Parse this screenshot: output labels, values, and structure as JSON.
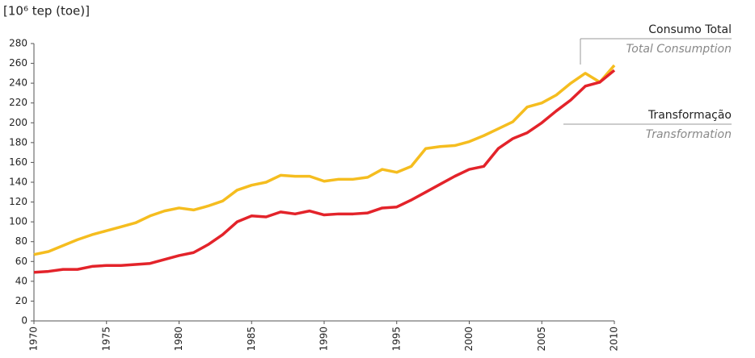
{
  "chart_data": {
    "type": "line",
    "y_label": "[10⁶ tep (toe)]",
    "x": [
      1970,
      1971,
      1972,
      1973,
      1974,
      1975,
      1976,
      1977,
      1978,
      1979,
      1980,
      1981,
      1982,
      1983,
      1984,
      1985,
      1986,
      1987,
      1988,
      1989,
      1990,
      1991,
      1992,
      1993,
      1994,
      1995,
      1996,
      1997,
      1998,
      1999,
      2000,
      2001,
      2002,
      2003,
      2004,
      2005,
      2006,
      2007,
      2008,
      2009,
      2010
    ],
    "series": [
      {
        "name": "Consumo Total",
        "name_translation": "Total Consumption",
        "color": "#f5bd1f",
        "values": [
          67,
          70,
          76,
          82,
          87,
          91,
          95,
          99,
          106,
          111,
          114,
          112,
          116,
          121,
          132,
          137,
          140,
          147,
          146,
          146,
          141,
          143,
          143,
          145,
          153,
          150,
          156,
          174,
          176,
          177,
          181,
          187,
          194,
          201,
          216,
          220,
          228,
          240,
          250,
          241,
          258
        ]
      },
      {
        "name": "Transformação",
        "name_translation": "Transformation",
        "color": "#e3232a",
        "values": [
          49,
          50,
          52,
          52,
          55,
          56,
          56,
          57,
          58,
          62,
          66,
          69,
          77,
          87,
          100,
          106,
          105,
          110,
          108,
          111,
          107,
          108,
          108,
          109,
          114,
          115,
          122,
          130,
          138,
          146,
          153,
          156,
          174,
          184,
          190,
          200,
          212,
          223,
          237,
          241,
          253
        ]
      }
    ],
    "xlim": [
      1970,
      2010
    ],
    "xticks": [
      1970,
      1975,
      1980,
      1985,
      1990,
      1995,
      2000,
      2005,
      2010
    ],
    "ylim": [
      0,
      280
    ],
    "yticks": [
      0,
      20,
      40,
      60,
      80,
      100,
      120,
      140,
      160,
      180,
      200,
      220,
      240,
      260,
      280
    ],
    "grid": false
  }
}
